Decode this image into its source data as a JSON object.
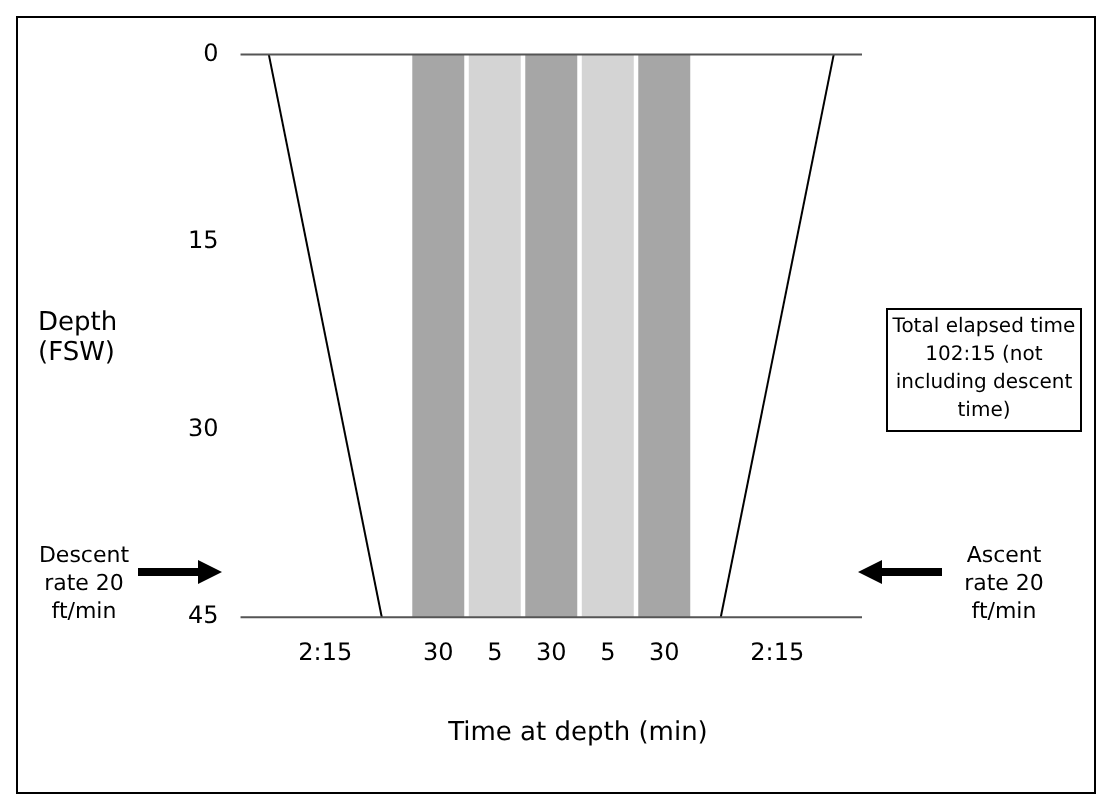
{
  "chart_data": {
    "type": "bar",
    "xlabel": "Time at depth (min)",
    "ylabel": "Depth (FSW)",
    "categories": [
      null,
      "2:15",
      null,
      "30",
      "5",
      "30",
      "5",
      "30",
      null,
      "2:15",
      null
    ],
    "series": [
      {
        "colors": [
          null,
          null,
          null,
          "#a6a6a6",
          "#d4d4d4",
          "#a6a6a6",
          "#d4d4d4",
          "#a6a6a6",
          null,
          null,
          null
        ],
        "values": [
          null,
          null,
          null,
          45,
          45,
          45,
          45,
          45,
          null,
          null,
          null
        ]
      },
      {
        "type": "line",
        "color": "#000000",
        "values": [
          0,
          null,
          45,
          null,
          null,
          null,
          null,
          null,
          null,
          null,
          null
        ]
      },
      {
        "type": "line",
        "color": "#000000",
        "values": [
          null,
          null,
          null,
          null,
          null,
          null,
          null,
          null,
          45,
          null,
          0
        ]
      }
    ],
    "ylim": [
      45,
      0
    ],
    "yticks": [
      0,
      15,
      30,
      45
    ],
    "grid": false,
    "legend": false,
    "marker": "none",
    "annotations": [
      "Descent rate 20 ft/min",
      "Ascent rate 20 ft/min",
      "Total elapsed time 102:15 (not including descent time)"
    ]
  }
}
